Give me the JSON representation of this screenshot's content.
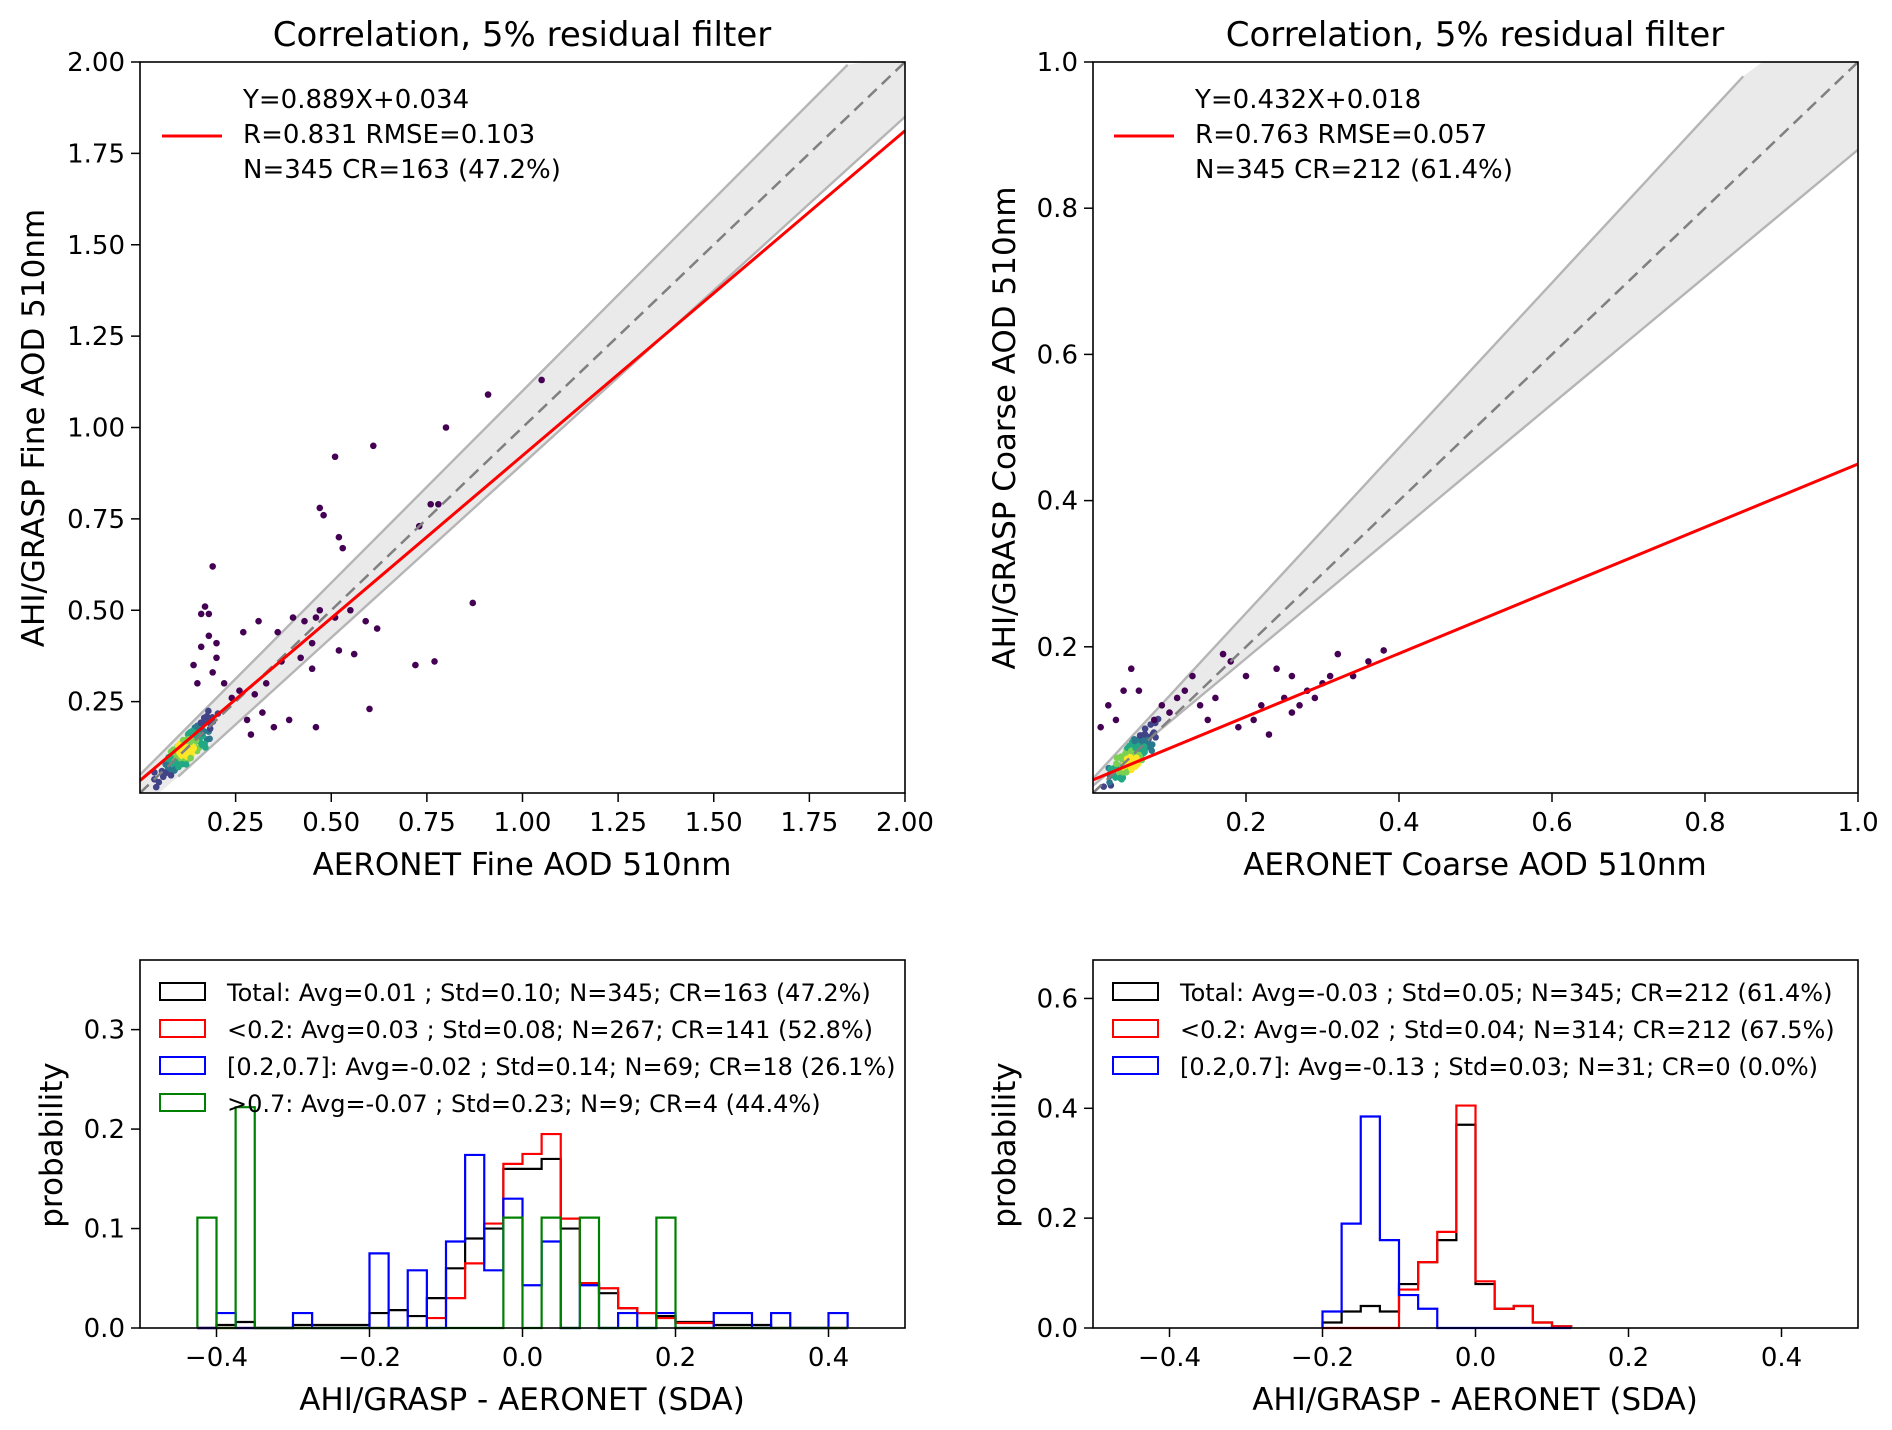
{
  "chart_data": [
    {
      "type": "scatter",
      "title": "Correlation, 5% residual filter",
      "xlabel": "AERONET Fine AOD 510nm",
      "ylabel": "AHI/GRASP Fine AOD 510nm",
      "xlim": [
        0,
        2.0
      ],
      "ylim": [
        0,
        2.0
      ],
      "xticks": [
        0.25,
        0.5,
        0.75,
        1.0,
        1.25,
        1.5,
        1.75,
        2.0
      ],
      "xtick_labels": [
        "0.25",
        "0.50",
        "0.75",
        "1.00",
        "1.25",
        "1.50",
        "1.75",
        "2.00"
      ],
      "yticks": [
        0.25,
        0.5,
        0.75,
        1.0,
        1.25,
        1.5,
        1.75,
        2.0
      ],
      "ytick_labels": [
        "0.25",
        "0.50",
        "0.75",
        "1.00",
        "1.25",
        "1.50",
        "1.75",
        "2.00"
      ],
      "fit": {
        "slope": 0.889,
        "intercept": 0.034,
        "color": "#ff0000"
      },
      "envelope": {
        "lower_slope": 0.95,
        "lower_offset": -0.05,
        "upper_slope": 1.05,
        "upper_offset": 0.05
      },
      "legend": [
        "Y=0.889X+0.034",
        "R=0.831  RMSE=0.103",
        "N=345 CR=163 (47.2%)"
      ],
      "outliers": [
        [
          1.05,
          1.13
        ],
        [
          0.91,
          1.09
        ],
        [
          0.8,
          1.0
        ],
        [
          0.61,
          0.95
        ],
        [
          0.51,
          0.92
        ],
        [
          0.76,
          0.79
        ],
        [
          0.78,
          0.79
        ],
        [
          0.47,
          0.78
        ],
        [
          0.48,
          0.76
        ],
        [
          0.73,
          0.73
        ],
        [
          0.52,
          0.7
        ],
        [
          0.53,
          0.67
        ],
        [
          0.19,
          0.62
        ],
        [
          0.87,
          0.52
        ],
        [
          0.17,
          0.51
        ],
        [
          0.18,
          0.49
        ],
        [
          0.16,
          0.49
        ],
        [
          0.31,
          0.47
        ],
        [
          0.4,
          0.48
        ],
        [
          0.43,
          0.47
        ],
        [
          0.46,
          0.48
        ],
        [
          0.47,
          0.5
        ],
        [
          0.51,
          0.48
        ],
        [
          0.55,
          0.5
        ],
        [
          0.59,
          0.47
        ],
        [
          0.62,
          0.45
        ],
        [
          0.27,
          0.44
        ],
        [
          0.45,
          0.41
        ],
        [
          0.52,
          0.39
        ],
        [
          0.56,
          0.38
        ],
        [
          0.36,
          0.44
        ],
        [
          0.42,
          0.37
        ],
        [
          0.45,
          0.34
        ],
        [
          0.72,
          0.35
        ],
        [
          0.77,
          0.36
        ],
        [
          0.18,
          0.43
        ],
        [
          0.16,
          0.4
        ],
        [
          0.2,
          0.37
        ],
        [
          0.14,
          0.35
        ],
        [
          0.19,
          0.33
        ],
        [
          0.15,
          0.3
        ],
        [
          0.26,
          0.28
        ],
        [
          0.24,
          0.26
        ],
        [
          0.3,
          0.27
        ],
        [
          0.32,
          0.22
        ],
        [
          0.35,
          0.18
        ],
        [
          0.39,
          0.2
        ],
        [
          0.46,
          0.18
        ],
        [
          0.6,
          0.23
        ],
        [
          0.29,
          0.16
        ],
        [
          0.28,
          0.2
        ],
        [
          0.33,
          0.3
        ],
        [
          0.22,
          0.3
        ],
        [
          0.37,
          0.36
        ],
        [
          0.2,
          0.41
        ]
      ],
      "cluster": {
        "center": [
          0.12,
          0.12
        ],
        "spread": 0.07,
        "count": 240
      }
    },
    {
      "type": "scatter",
      "title": "Correlation, 5% residual filter",
      "xlabel": "AERONET Coarse AOD 510nm",
      "ylabel": "AHI/GRASP Coarse AOD 510nm",
      "xlim": [
        0,
        1.0
      ],
      "ylim": [
        0,
        1.0
      ],
      "xticks": [
        0.2,
        0.4,
        0.6,
        0.8,
        1.0
      ],
      "xtick_labels": [
        "0.2",
        "0.4",
        "0.6",
        "0.8",
        "1.0"
      ],
      "yticks": [
        0.2,
        0.4,
        0.6,
        0.8,
        1.0
      ],
      "ytick_labels": [
        "0.2",
        "0.4",
        "0.6",
        "0.8",
        "1.0"
      ],
      "fit": {
        "slope": 0.432,
        "intercept": 0.018,
        "color": "#ff0000"
      },
      "envelope": {
        "lower_slope": 0.87,
        "lower_offset": 0.01,
        "upper_slope": 1.13,
        "upper_offset": 0.02
      },
      "legend": [
        "Y=0.432X+0.018",
        "R=0.763  RMSE=0.057",
        "N=345 CR=212 (61.4%)"
      ],
      "outliers": [
        [
          0.38,
          0.195
        ],
        [
          0.36,
          0.18
        ],
        [
          0.32,
          0.19
        ],
        [
          0.3,
          0.15
        ],
        [
          0.28,
          0.14
        ],
        [
          0.26,
          0.16
        ],
        [
          0.25,
          0.13
        ],
        [
          0.24,
          0.17
        ],
        [
          0.22,
          0.12
        ],
        [
          0.21,
          0.1
        ],
        [
          0.2,
          0.16
        ],
        [
          0.19,
          0.09
        ],
        [
          0.18,
          0.18
        ],
        [
          0.17,
          0.19
        ],
        [
          0.16,
          0.13
        ],
        [
          0.15,
          0.1
        ],
        [
          0.14,
          0.12
        ],
        [
          0.13,
          0.16
        ],
        [
          0.12,
          0.14
        ],
        [
          0.11,
          0.13
        ],
        [
          0.1,
          0.11
        ],
        [
          0.09,
          0.12
        ],
        [
          0.08,
          0.1
        ],
        [
          0.05,
          0.17
        ],
        [
          0.06,
          0.14
        ],
        [
          0.04,
          0.14
        ],
        [
          0.02,
          0.12
        ],
        [
          0.01,
          0.09
        ],
        [
          0.03,
          0.1
        ],
        [
          0.29,
          0.13
        ],
        [
          0.27,
          0.12
        ],
        [
          0.31,
          0.16
        ],
        [
          0.23,
          0.08
        ],
        [
          0.26,
          0.11
        ],
        [
          0.34,
          0.16
        ]
      ],
      "cluster": {
        "center": [
          0.05,
          0.04
        ],
        "spread": 0.035,
        "count": 260
      }
    },
    {
      "type": "histogram",
      "xlabel": "AHI/GRASP - AERONET (SDA)",
      "ylabel": "probability",
      "xlim": [
        -0.5,
        0.5
      ],
      "ylim": [
        0,
        0.37
      ],
      "xticks": [
        -0.4,
        -0.2,
        0.0,
        0.2,
        0.4
      ],
      "xtick_labels": [
        "−0.4",
        "−0.2",
        "0.0",
        "0.2",
        "0.4"
      ],
      "yticks": [
        0.0,
        0.1,
        0.2,
        0.3
      ],
      "ytick_labels": [
        "0.0",
        "0.1",
        "0.2",
        "0.3"
      ],
      "bin_edges": [
        -0.425,
        -0.4,
        -0.375,
        -0.35,
        -0.325,
        -0.3,
        -0.275,
        -0.25,
        -0.225,
        -0.2,
        -0.175,
        -0.15,
        -0.125,
        -0.1,
        -0.075,
        -0.05,
        -0.025,
        0.0,
        0.025,
        0.05,
        0.075,
        0.1,
        0.125,
        0.15,
        0.175,
        0.2,
        0.225,
        0.25,
        0.275,
        0.3,
        0.325,
        0.35,
        0.375,
        0.4,
        0.425
      ],
      "series": [
        {
          "name": "Total: Avg=0.01 ; Std=0.10; N=345; CR=163 (47.2%)",
          "color": "#000000",
          "values": [
            0.0,
            0.003,
            0.006,
            0.0,
            0.0,
            0.003,
            0.003,
            0.003,
            0.003,
            0.015,
            0.018,
            0.012,
            0.03,
            0.06,
            0.09,
            0.1,
            0.16,
            0.16,
            0.17,
            0.1,
            0.045,
            0.035,
            0.02,
            0.015,
            0.012,
            0.006,
            0.006,
            0.003,
            0.003,
            0.003,
            0.0,
            0.0,
            0.0,
            0.0
          ]
        },
        {
          "name": "<0.2: Avg=0.03 ; Std=0.08; N=267; CR=141 (52.8%)",
          "color": "#ff0000",
          "values": [
            0.0,
            0.0,
            0.0,
            0.0,
            0.0,
            0.0,
            0.0,
            0.0,
            0.0,
            0.0,
            0.0,
            0.0,
            0.01,
            0.03,
            0.065,
            0.105,
            0.165,
            0.175,
            0.195,
            0.11,
            0.045,
            0.04,
            0.02,
            0.015,
            0.01,
            0.005,
            0.005,
            0.0,
            0.0,
            0.0,
            0.0,
            0.0,
            0.0,
            0.0
          ]
        },
        {
          "name": "[0.2,0.7]: Avg=-0.02 ; Std=0.14; N=69; CR=18 (26.1%)",
          "color": "#0000ff",
          "values": [
            0.0,
            0.015,
            0.0,
            0.0,
            0.0,
            0.015,
            0.0,
            0.0,
            0.0,
            0.075,
            0.0,
            0.058,
            0.0,
            0.087,
            0.174,
            0.058,
            0.13,
            0.043,
            0.087,
            0.0,
            0.043,
            0.0,
            0.015,
            0.0,
            0.015,
            0.0,
            0.0,
            0.015,
            0.015,
            0.0,
            0.015,
            0.0,
            0.0,
            0.015
          ]
        },
        {
          "name": ">0.7: Avg=-0.07 ; Std=0.23; N=9; CR=4 (44.4%)",
          "color": "#008000",
          "values": [
            0.111,
            0.0,
            0.222,
            0.0,
            0.0,
            0.0,
            0.0,
            0.0,
            0.0,
            0.0,
            0.0,
            0.0,
            0.0,
            0.0,
            0.0,
            0.0,
            0.111,
            0.0,
            0.111,
            0.0,
            0.111,
            0.0,
            0.0,
            0.0,
            0.111,
            0.0,
            0.0,
            0.0,
            0.0,
            0.0,
            0.0,
            0.0,
            0.0,
            0.0
          ]
        }
      ]
    },
    {
      "type": "histogram",
      "xlabel": "AHI/GRASP - AERONET (SDA)",
      "ylabel": "probability",
      "xlim": [
        -0.5,
        0.5
      ],
      "ylim": [
        0,
        0.67
      ],
      "xticks": [
        -0.4,
        -0.2,
        0.0,
        0.2,
        0.4
      ],
      "xtick_labels": [
        "−0.4",
        "−0.2",
        "0.0",
        "0.2",
        "0.4"
      ],
      "yticks": [
        0.0,
        0.2,
        0.4,
        0.6
      ],
      "ytick_labels": [
        "0.0",
        "0.2",
        "0.4",
        "0.6"
      ],
      "bin_edges": [
        -0.2,
        -0.175,
        -0.15,
        -0.125,
        -0.1,
        -0.075,
        -0.05,
        -0.025,
        0.0,
        0.025,
        0.05,
        0.075,
        0.1,
        0.125
      ],
      "series": [
        {
          "name": "Total: Avg=-0.03 ; Std=0.05; N=345; CR=212 (61.4%)",
          "color": "#000000",
          "values": [
            0.01,
            0.03,
            0.04,
            0.03,
            0.08,
            0.12,
            0.16,
            0.37,
            0.08,
            0.035,
            0.04,
            0.01,
            0.003
          ]
        },
        {
          "name": "<0.2: Avg=-0.02 ; Std=0.04; N=314; CR=212 (67.5%)",
          "color": "#ff0000",
          "values": [
            0.0,
            0.0,
            0.0,
            0.0,
            0.07,
            0.12,
            0.175,
            0.405,
            0.085,
            0.035,
            0.04,
            0.01,
            0.003
          ]
        },
        {
          "name": "[0.2,0.7]: Avg=-0.13 ; Std=0.03; N=31; CR=0 (0.0%)",
          "color": "#0000ff",
          "values": [
            0.03,
            0.19,
            0.385,
            0.16,
            0.06,
            0.035,
            0.0,
            0.0,
            0.0,
            0.0,
            0.0,
            0.0,
            0.0
          ]
        }
      ]
    }
  ]
}
